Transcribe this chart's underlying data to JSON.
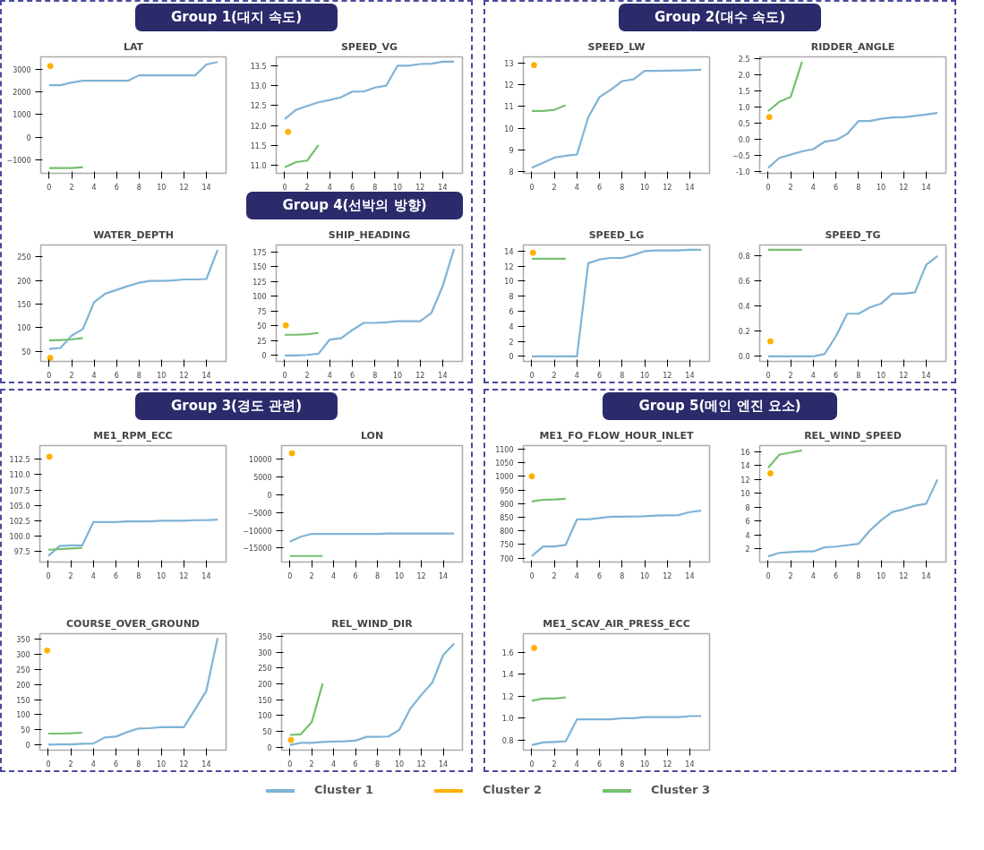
{
  "chart_data": [
    {
      "type": "line",
      "title": "LAT",
      "annotations": [
        "Group 1(대지 속도)"
      ],
      "xlim": [
        -0.75,
        15.75
      ],
      "xticks": [
        0,
        2,
        4,
        6,
        8,
        10,
        12,
        14
      ],
      "ylim": [
        -1610,
        3560
      ],
      "yticks": [
        -1000,
        0,
        1000,
        2000,
        3000
      ],
      "series": [
        {
          "color": "#7fb3d5",
          "x": [
            0,
            1,
            2,
            3,
            4,
            5,
            6,
            7,
            8,
            9,
            10,
            11,
            12,
            13,
            14,
            15
          ],
          "values": [
            2300,
            2300,
            2420,
            2500,
            2500,
            2500,
            2500,
            2500,
            2740,
            2740,
            2740,
            2740,
            2740,
            2740,
            3220,
            3330
          ]
        },
        {
          "type": "scatter",
          "marker": "circle",
          "color": "#ffb000",
          "x": [
            0.1
          ],
          "values": [
            3150
          ]
        },
        {
          "color": "#76c06f",
          "x": [
            0,
            1,
            2,
            3
          ],
          "values": [
            -1380,
            -1380,
            -1380,
            -1340
          ]
        }
      ]
    },
    {
      "type": "line",
      "title": "SPEED_VG",
      "xlim": [
        -0.75,
        15.75
      ],
      "xticks": [
        0,
        2,
        4,
        6,
        8,
        10,
        12,
        14
      ],
      "ylim": [
        10.8,
        13.72
      ],
      "yticks": [
        {
          "value": 11,
          "label": "11.0"
        },
        11.5,
        {
          "value": 12,
          "label": "12.0"
        },
        12.5,
        {
          "value": 13,
          "label": "13.0"
        },
        13.5
      ],
      "series": [
        {
          "color": "#7fb3d5",
          "x": [
            0,
            1,
            2,
            3,
            4,
            5,
            6,
            7,
            8,
            9,
            10,
            11,
            12,
            13,
            14,
            15
          ],
          "values": [
            12.16,
            12.39,
            12.49,
            12.58,
            12.64,
            12.71,
            12.85,
            12.85,
            12.95,
            13.0,
            13.5,
            13.5,
            13.54,
            13.55,
            13.6,
            13.6
          ]
        },
        {
          "type": "scatter",
          "marker": "circle",
          "color": "#ffb000",
          "x": [
            0.3
          ],
          "values": [
            11.84
          ]
        },
        {
          "color": "#76c06f",
          "x": [
            0,
            1,
            2,
            3
          ],
          "values": [
            10.95,
            11.08,
            11.12,
            11.51
          ]
        }
      ]
    },
    {
      "type": "line",
      "title": "WATER_DEPTH",
      "xlim": [
        -0.75,
        15.75
      ],
      "xticks": [
        0,
        2,
        4,
        6,
        8,
        10,
        12,
        14
      ],
      "ylim": [
        28.6,
        275
      ],
      "yticks": [
        50,
        100,
        150,
        200,
        250
      ],
      "series": [
        {
          "color": "#7fb3d5",
          "x": [
            0,
            1,
            2,
            3,
            4,
            5,
            6,
            7,
            8,
            9,
            10,
            11,
            12,
            13,
            14,
            15
          ],
          "values": [
            55,
            57,
            83,
            97,
            154,
            172,
            180,
            188,
            195,
            199,
            199,
            200,
            202,
            202,
            203,
            265
          ]
        },
        {
          "type": "scatter",
          "marker": "circle",
          "color": "#ffb000",
          "x": [
            0.1
          ],
          "values": [
            36
          ]
        },
        {
          "color": "#76c06f",
          "x": [
            0,
            1,
            2,
            3
          ],
          "values": [
            73,
            74,
            75,
            78
          ]
        }
      ]
    },
    {
      "type": "line",
      "title": "SHIP_HEADING",
      "annotations": [
        "Group 4(선박의 방향)"
      ],
      "xlim": [
        -0.75,
        15.75
      ],
      "xticks": [
        0,
        2,
        4,
        6,
        8,
        10,
        12,
        14
      ],
      "ylim": [
        -10,
        186.6
      ],
      "yticks": [
        0,
        25,
        50,
        75,
        100,
        125,
        150,
        175
      ],
      "series": [
        {
          "color": "#7fb3d5",
          "x": [
            0,
            1,
            2,
            3,
            4,
            5,
            6,
            7,
            8,
            9,
            10,
            11,
            12,
            13,
            14,
            15
          ],
          "values": [
            0,
            0,
            1,
            3,
            27,
            29,
            43,
            55,
            55,
            56,
            58,
            58,
            58,
            72,
            117,
            180
          ]
        },
        {
          "type": "scatter",
          "marker": "circle",
          "color": "#ffb000",
          "x": [
            0.1
          ],
          "values": [
            51
          ]
        },
        {
          "color": "#76c06f",
          "x": [
            0,
            1,
            2,
            3
          ],
          "values": [
            35,
            35,
            36,
            38
          ]
        }
      ]
    },
    {
      "type": "line",
      "title": "SPEED_LW",
      "annotations": [
        "Group 2(대수 속도)"
      ],
      "xlim": [
        -0.75,
        15.75
      ],
      "xticks": [
        0,
        2,
        4,
        6,
        8,
        10,
        12,
        14
      ],
      "ylim": [
        7.91,
        13.3
      ],
      "yticks": [
        8,
        9,
        10,
        11,
        12,
        13
      ],
      "series": [
        {
          "color": "#7fb3d5",
          "x": [
            0,
            1,
            2,
            3,
            4,
            5,
            6,
            7,
            8,
            9,
            10,
            11,
            12,
            13,
            14,
            15
          ],
          "values": [
            8.17,
            8.4,
            8.64,
            8.72,
            8.78,
            10.5,
            11.44,
            11.78,
            12.18,
            12.26,
            12.65,
            12.65,
            12.66,
            12.67,
            12.68,
            12.7
          ]
        },
        {
          "type": "scatter",
          "marker": "circle",
          "color": "#ffb000",
          "x": [
            0.2
          ],
          "values": [
            12.92
          ]
        },
        {
          "color": "#76c06f",
          "x": [
            0,
            1,
            2,
            3
          ],
          "values": [
            10.8,
            10.8,
            10.85,
            11.06
          ]
        }
      ]
    },
    {
      "type": "line",
      "title": "RIDDER_ANGLE",
      "xlim": [
        -0.75,
        15.75
      ],
      "xticks": [
        0,
        2,
        4,
        6,
        8,
        10,
        12,
        14
      ],
      "ylim": [
        -1.05,
        2.56
      ],
      "yticks": [
        {
          "value": -1,
          "label": "-1.0"
        },
        -0.5,
        {
          "value": 0,
          "label": "0.0"
        },
        0.5,
        {
          "value": 1,
          "label": "1.0"
        },
        1.5,
        {
          "value": 2,
          "label": "2.0"
        },
        2.5
      ],
      "series": [
        {
          "color": "#7fb3d5",
          "x": [
            0,
            1,
            2,
            3,
            4,
            5,
            6,
            7,
            8,
            9,
            10,
            11,
            12,
            13,
            14,
            15
          ],
          "values": [
            -0.88,
            -0.57,
            -0.47,
            -0.37,
            -0.3,
            -0.07,
            -0.02,
            0.17,
            0.57,
            0.57,
            0.64,
            0.68,
            0.69,
            0.73,
            0.77,
            0.82
          ]
        },
        {
          "type": "scatter",
          "marker": "circle",
          "color": "#ffb000",
          "x": [
            0.1
          ],
          "values": [
            0.69
          ]
        },
        {
          "color": "#76c06f",
          "x": [
            0,
            1,
            2,
            3
          ],
          "values": [
            0.88,
            1.17,
            1.32,
            2.41
          ]
        }
      ]
    },
    {
      "type": "line",
      "title": "SPEED_LG",
      "xlim": [
        -0.75,
        15.75
      ],
      "xticks": [
        0,
        2,
        4,
        6,
        8,
        10,
        12,
        14
      ],
      "ylim": [
        -0.68,
        14.83
      ],
      "yticks": [
        0,
        2,
        4,
        6,
        8,
        10,
        12,
        14
      ],
      "series": [
        {
          "color": "#7fb3d5",
          "x": [
            0,
            1,
            2,
            3,
            4,
            5,
            6,
            7,
            8,
            9,
            10,
            11,
            12,
            13,
            14,
            15
          ],
          "values": [
            0,
            0,
            0,
            0,
            0,
            12.4,
            12.9,
            13.1,
            13.1,
            13.5,
            14.0,
            14.1,
            14.1,
            14.1,
            14.2,
            14.2
          ]
        },
        {
          "type": "scatter",
          "marker": "circle",
          "color": "#ffb000",
          "x": [
            0.1
          ],
          "values": [
            13.8
          ]
        },
        {
          "color": "#76c06f",
          "x": [
            0,
            1,
            2,
            3
          ],
          "values": [
            13.0,
            13.0,
            13.0,
            13.0
          ]
        }
      ]
    },
    {
      "type": "line",
      "title": "SPEED_TG",
      "xlim": [
        -0.75,
        15.75
      ],
      "xticks": [
        0,
        2,
        4,
        6,
        8,
        10,
        12,
        14
      ],
      "ylim": [
        -0.04,
        0.888
      ],
      "yticks": [
        {
          "value": 0,
          "label": "0.0"
        },
        0.2,
        0.4,
        0.6,
        0.8
      ],
      "series": [
        {
          "color": "#7fb3d5",
          "x": [
            0,
            1,
            2,
            3,
            4,
            5,
            6,
            7,
            8,
            9,
            10,
            11,
            12,
            13,
            14,
            15
          ],
          "values": [
            0,
            0,
            0,
            0,
            0,
            0.02,
            0.16,
            0.34,
            0.34,
            0.39,
            0.42,
            0.5,
            0.5,
            0.51,
            0.73,
            0.8
          ]
        },
        {
          "type": "scatter",
          "marker": "circle",
          "color": "#ffb000",
          "x": [
            0.2
          ],
          "values": [
            0.12
          ]
        },
        {
          "color": "#76c06f",
          "x": [
            0,
            1,
            2,
            3
          ],
          "values": [
            0.85,
            0.85,
            0.85,
            0.85
          ]
        }
      ]
    },
    {
      "type": "line",
      "title": "ME1_RPM_ECC",
      "annotations": [
        "Group 3(경도 관련)"
      ],
      "xlim": [
        -0.75,
        15.75
      ],
      "xticks": [
        0,
        2,
        4,
        6,
        8,
        10,
        12,
        14
      ],
      "ylim": [
        95.8,
        114.7
      ],
      "yticks": [
        97.5,
        {
          "value": 100,
          "label": "100.0"
        },
        102.5,
        {
          "value": 105,
          "label": "105.0"
        },
        107.5,
        {
          "value": 110,
          "label": "110.0"
        },
        112.5
      ],
      "series": [
        {
          "color": "#7fb3d5",
          "x": [
            0,
            1,
            2,
            3,
            4,
            5,
            6,
            7,
            8,
            9,
            10,
            11,
            12,
            13,
            14,
            15
          ],
          "values": [
            96.8,
            98.4,
            98.5,
            98.5,
            102.3,
            102.3,
            102.3,
            102.4,
            102.4,
            102.4,
            102.5,
            102.5,
            102.5,
            102.6,
            102.6,
            102.7
          ]
        },
        {
          "type": "scatter",
          "marker": "circle",
          "color": "#ffb000",
          "x": [
            0.1
          ],
          "values": [
            112.9
          ]
        },
        {
          "color": "#76c06f",
          "x": [
            0,
            1,
            2,
            3
          ],
          "values": [
            97.8,
            97.9,
            98.0,
            98.1
          ]
        }
      ]
    },
    {
      "type": "line",
      "title": "LON",
      "xlim": [
        -0.75,
        15.75
      ],
      "xticks": [
        0,
        2,
        4,
        6,
        8,
        10,
        12,
        14
      ],
      "ylim": [
        -18900,
        13750
      ],
      "yticks": [
        -15000,
        -10000,
        -5000,
        0,
        5000,
        10000
      ],
      "series": [
        {
          "color": "#7fb3d5",
          "x": [
            0,
            1,
            2,
            3,
            4,
            5,
            6,
            7,
            8,
            9,
            10,
            11,
            12,
            13,
            14,
            15
          ],
          "values": [
            -13200,
            -11800,
            -11000,
            -11000,
            -11000,
            -11000,
            -11000,
            -11000,
            -11000,
            -10900,
            -10900,
            -10900,
            -10900,
            -10900,
            -10900,
            -10900
          ]
        },
        {
          "type": "scatter",
          "marker": "circle",
          "color": "#ffb000",
          "x": [
            0.2
          ],
          "values": [
            11600
          ]
        },
        {
          "color": "#76c06f",
          "x": [
            0,
            1,
            2,
            3
          ],
          "values": [
            -17200,
            -17200,
            -17200,
            -17200
          ]
        }
      ]
    },
    {
      "type": "line",
      "title": "COURSE_OVER_GROUND",
      "xlim": [
        -0.75,
        15.75
      ],
      "xticks": [
        0,
        2,
        4,
        6,
        8,
        10,
        12,
        14
      ],
      "ylim": [
        -18,
        369
      ],
      "yticks": [
        0,
        50,
        100,
        150,
        200,
        250,
        300,
        350
      ],
      "series": [
        {
          "color": "#7fb3d5",
          "x": [
            0,
            1,
            2,
            3,
            4,
            5,
            6,
            7,
            8,
            9,
            10,
            11,
            12,
            13,
            14,
            15
          ],
          "values": [
            0,
            1,
            1,
            3,
            4,
            24,
            27,
            42,
            54,
            55,
            58,
            58,
            58,
            117,
            179,
            355
          ]
        },
        {
          "type": "scatter",
          "marker": "circle",
          "color": "#ffb000",
          "x": [
            -0.1
          ],
          "values": [
            313
          ]
        },
        {
          "color": "#76c06f",
          "x": [
            0,
            1,
            2,
            3
          ],
          "values": [
            37,
            37,
            38,
            40
          ]
        }
      ]
    },
    {
      "type": "line",
      "title": "REL_WIND_DIR",
      "xlim": [
        -0.75,
        15.75
      ],
      "xticks": [
        0,
        2,
        4,
        6,
        8,
        10,
        12,
        14
      ],
      "ylim": [
        -9,
        358
      ],
      "yticks": [
        0,
        50,
        100,
        150,
        200,
        250,
        300,
        350
      ],
      "series": [
        {
          "color": "#7fb3d5",
          "x": [
            0,
            1,
            2,
            3,
            4,
            5,
            6,
            7,
            8,
            9,
            10,
            11,
            12,
            13,
            14,
            15
          ],
          "values": [
            7,
            14,
            14,
            17,
            18,
            19,
            21,
            33,
            33,
            34,
            55,
            122,
            165,
            204,
            291,
            327
          ]
        },
        {
          "type": "scatter",
          "marker": "circle",
          "color": "#ffb000",
          "x": [
            0.1
          ],
          "values": [
            23
          ]
        },
        {
          "color": "#76c06f",
          "x": [
            0,
            1,
            2,
            3
          ],
          "values": [
            39,
            41,
            79,
            201
          ]
        }
      ]
    },
    {
      "type": "line",
      "title": "ME1_FO_FLOW_HOUR_INLET",
      "annotations": [
        "Group 5(메인 엔진 요소)"
      ],
      "xlim": [
        -0.75,
        15.75
      ],
      "xticks": [
        0,
        2,
        4,
        6,
        8,
        10,
        12,
        14
      ],
      "ylim": [
        686,
        1112.5
      ],
      "yticks": [
        700,
        750,
        800,
        850,
        900,
        950,
        1000,
        1050,
        1100
      ],
      "series": [
        {
          "color": "#7fb3d5",
          "x": [
            0,
            1,
            2,
            3,
            4,
            5,
            6,
            7,
            8,
            9,
            10,
            11,
            12,
            13,
            14,
            15
          ],
          "values": [
            708,
            743,
            743,
            749,
            842,
            842,
            847,
            852,
            852,
            853,
            854,
            856,
            857,
            858,
            869,
            874
          ]
        },
        {
          "type": "scatter",
          "marker": "circle",
          "color": "#ffb000",
          "x": [
            0
          ],
          "values": [
            1000
          ]
        },
        {
          "color": "#76c06f",
          "x": [
            0,
            1,
            2,
            3
          ],
          "values": [
            908,
            914,
            915,
            918
          ]
        }
      ]
    },
    {
      "type": "line",
      "title": "REL_WIND_SPEED",
      "xlim": [
        -0.75,
        15.75
      ],
      "xticks": [
        0,
        2,
        4,
        6,
        8,
        10,
        12,
        14
      ],
      "ylim": [
        0.07,
        16.9
      ],
      "yticks": [
        2,
        4,
        6,
        8,
        10,
        12,
        14,
        16
      ],
      "series": [
        {
          "color": "#7fb3d5",
          "x": [
            0,
            1,
            2,
            3,
            4,
            5,
            6,
            7,
            8,
            9,
            10,
            11,
            12,
            13,
            14,
            15
          ],
          "values": [
            0.9,
            1.4,
            1.5,
            1.6,
            1.6,
            2.2,
            2.3,
            2.5,
            2.7,
            4.6,
            6.1,
            7.3,
            7.7,
            8.2,
            8.5,
            12.0
          ]
        },
        {
          "type": "scatter",
          "marker": "circle",
          "color": "#ffb000",
          "x": [
            0.2
          ],
          "values": [
            12.9
          ]
        },
        {
          "color": "#76c06f",
          "x": [
            0,
            1,
            2,
            3
          ],
          "values": [
            13.7,
            15.6,
            15.9,
            16.2
          ]
        }
      ]
    },
    {
      "type": "line",
      "title": "ME1_SCAV_AIR_PRESS_ECC",
      "legend": "bottom",
      "xlim": [
        -0.75,
        15.75
      ],
      "xticks": [
        0,
        2,
        4,
        6,
        8,
        10,
        12,
        14
      ],
      "ylim": [
        0.71,
        1.77
      ],
      "yticks": [
        0.8,
        {
          "value": 1,
          "label": "1.0"
        },
        1.2,
        1.4,
        1.6
      ],
      "series": [
        {
          "name": "Cluster 1",
          "color": "#7fb3d5",
          "x": [
            0,
            1,
            2,
            3,
            4,
            5,
            6,
            7,
            8,
            9,
            10,
            11,
            12,
            13,
            14,
            15
          ],
          "values": [
            0.756,
            0.78,
            0.785,
            0.79,
            0.99,
            0.99,
            0.99,
            0.99,
            1.0,
            1.0,
            1.01,
            1.01,
            1.01,
            1.01,
            1.02,
            1.02
          ]
        },
        {
          "type": "scatter",
          "name": "Cluster 2",
          "marker": "circle",
          "color": "#ffb000",
          "x": [
            0.2
          ],
          "values": [
            1.64
          ]
        },
        {
          "name": "Cluster 3",
          "color": "#76c06f",
          "x": [
            0,
            1,
            2,
            3
          ],
          "values": [
            1.16,
            1.18,
            1.18,
            1.19
          ]
        }
      ]
    }
  ]
}
